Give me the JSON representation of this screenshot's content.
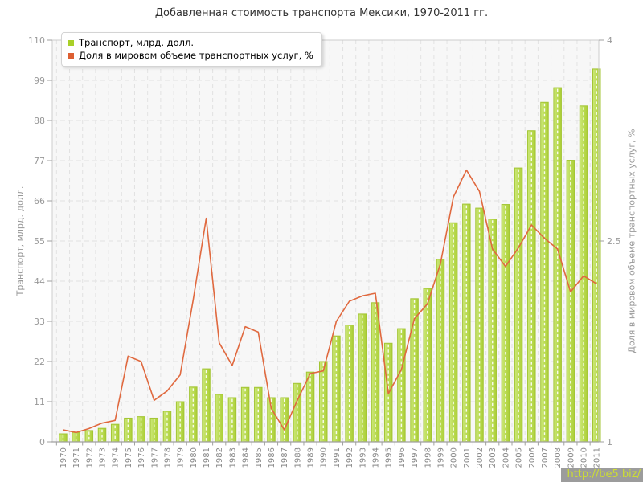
{
  "title": "Добавленная стоимость транспорта Мексики, 1970-2011 гг.",
  "legend": {
    "items": [
      {
        "label": "Транспорт, млрд. долл.",
        "color": "#a9d028"
      },
      {
        "label": "Доля в мировом объеме транспортных услуг, %",
        "color": "#dd5f32"
      }
    ]
  },
  "watermark": "http://be5.biz/",
  "colors": {
    "bar_fill_light": "#cce878",
    "bar_fill_dark": "#abcf35",
    "bar_stroke": "#a3c534",
    "bar_center_dash": "#ffffff",
    "line": "#e0693f",
    "plot_bg": "#f7f7f7",
    "grid": "#e2e2e2",
    "border": "#cccccc",
    "axis": "#a0a0a0",
    "tick_text": "#999999",
    "year_text": "#888888"
  },
  "chart_data": {
    "type": "bar",
    "title": "Добавленная стоимость транспорта Мексики, 1970-2011 гг.",
    "categories": [
      "1970",
      "1971",
      "1972",
      "1973",
      "1974",
      "1975",
      "1976",
      "1977",
      "1978",
      "1979",
      "1980",
      "1981",
      "1982",
      "1983",
      "1984",
      "1985",
      "1986",
      "1987",
      "1988",
      "1989",
      "1990",
      "1991",
      "1992",
      "1993",
      "1994",
      "1995",
      "1996",
      "1997",
      "1998",
      "1999",
      "2000",
      "2001",
      "2002",
      "2003",
      "2004",
      "2005",
      "2006",
      "2007",
      "2008",
      "2009",
      "2010",
      "2011"
    ],
    "series": [
      {
        "name": "Транспорт, млрд. долл.",
        "type": "bar",
        "axis": "left",
        "values": [
          2.2,
          2.6,
          3.1,
          3.7,
          4.8,
          6.5,
          6.9,
          6.5,
          8.4,
          11.0,
          15.0,
          20.0,
          13.0,
          12.1,
          14.9,
          14.9,
          12.1,
          12.1,
          16.0,
          19.1,
          22.0,
          29.0,
          32.0,
          35.0,
          38.1,
          27.0,
          31.0,
          39.2,
          42.0,
          50.0,
          60.0,
          65.1,
          64.0,
          61.0,
          65.0,
          75.0,
          85.2,
          93.0,
          97.0,
          77.1,
          92.0,
          102.1
        ]
      },
      {
        "name": "Доля в мировом объеме транспортных услуг, %",
        "type": "line",
        "axis": "right",
        "values": [
          1.09,
          1.07,
          1.1,
          1.14,
          1.16,
          1.64,
          1.6,
          1.31,
          1.38,
          1.5,
          2.06,
          2.67,
          1.74,
          1.57,
          1.86,
          1.82,
          1.25,
          1.09,
          1.31,
          1.51,
          1.53,
          1.9,
          2.05,
          2.09,
          2.11,
          1.36,
          1.54,
          1.92,
          2.03,
          2.33,
          2.83,
          3.03,
          2.87,
          2.44,
          2.31,
          2.45,
          2.62,
          2.52,
          2.44,
          2.12,
          2.24,
          2.18
        ]
      }
    ],
    "left_axis": {
      "label": "Транспорт, млрд. долл.",
      "min": 0,
      "max": 110,
      "ticks": [
        0,
        11,
        22,
        33,
        44,
        55,
        66,
        77,
        88,
        99,
        110
      ]
    },
    "right_axis": {
      "label": "Доля в мировом объеме транспортных услуг, %",
      "min": 1,
      "max": 4,
      "ticks": [
        1,
        2.5,
        4
      ]
    },
    "grid": true,
    "legend_position": "top-left"
  }
}
